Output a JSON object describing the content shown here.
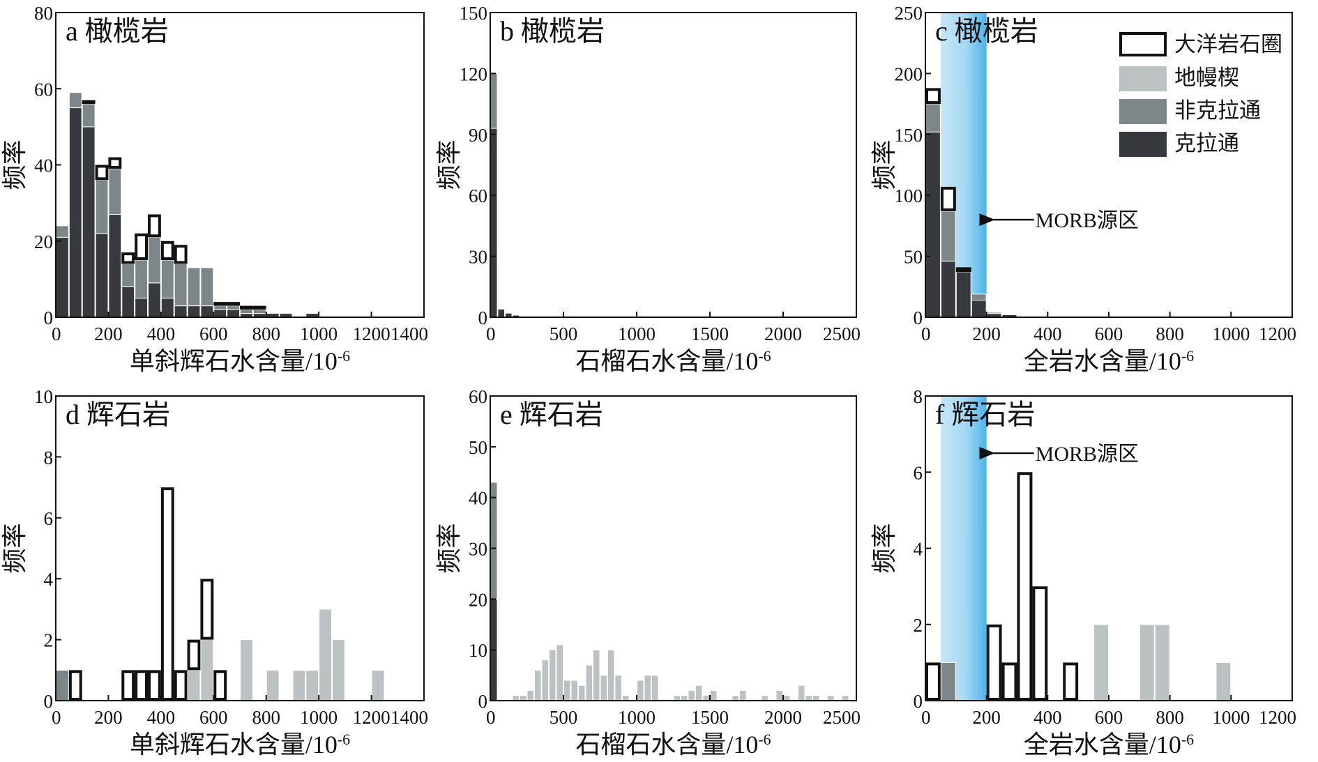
{
  "colors": {
    "ocean": "#ffffff",
    "wedge": "#bcc2c3",
    "noncraton": "#7d878a",
    "craton": "#363a3f",
    "morb_band_light": "#bfe3f6",
    "morb_band_dark": "#4fb6ec"
  },
  "legend": {
    "items": [
      {
        "key": "ocean",
        "label": "大洋岩石圈"
      },
      {
        "key": "wedge",
        "label": "地幔楔"
      },
      {
        "key": "noncraton",
        "label": "非克拉通"
      },
      {
        "key": "craton",
        "label": "克拉通"
      }
    ]
  },
  "chart_data": [
    {
      "id": "a",
      "type": "bar",
      "stacked": true,
      "title": "a 橄榄岩",
      "xlabel": "单斜辉石水含量/10",
      "xlabel_sup": "-6",
      "ylabel": "频率",
      "xlim": [
        0,
        1400
      ],
      "ylim": [
        0,
        80
      ],
      "xticks": [
        "0",
        "200",
        "400",
        "600",
        "800",
        "1000",
        "1200",
        "1400"
      ],
      "yticks": [
        "0",
        "20",
        "40",
        "60",
        "80"
      ],
      "bin_width": 50,
      "bin_start": [
        0,
        50,
        100,
        150,
        200,
        250,
        300,
        350,
        400,
        450,
        500,
        550,
        600,
        650,
        700,
        750,
        800,
        850,
        900,
        950
      ],
      "series": [
        {
          "key": "craton",
          "name": "克拉通",
          "values": [
            21,
            55,
            50,
            22,
            27,
            8,
            5,
            9,
            5,
            3,
            3,
            3,
            2,
            2,
            1,
            1,
            1,
            1,
            0,
            1
          ]
        },
        {
          "key": "noncraton",
          "name": "非克拉通",
          "values": [
            3,
            4,
            6,
            14,
            12,
            6,
            10,
            12,
            10,
            11,
            10,
            10,
            1,
            1,
            1,
            1,
            0,
            0,
            0,
            0
          ]
        },
        {
          "key": "wedge",
          "name": "地幔楔",
          "values": [
            0,
            0,
            0,
            0,
            0,
            0,
            0,
            0,
            0,
            0,
            0,
            0,
            0,
            0,
            0,
            0,
            0,
            0,
            0,
            0
          ]
        },
        {
          "key": "ocean",
          "name": "大洋岩石圈",
          "values": [
            0,
            0,
            1,
            4,
            3,
            3,
            7,
            6,
            5,
            5,
            0,
            0,
            1,
            1,
            1,
            1,
            0,
            0,
            0,
            0
          ]
        }
      ]
    },
    {
      "id": "b",
      "type": "bar",
      "stacked": true,
      "title": "b 橄榄岩",
      "xlabel": "石榴石水含量/10",
      "xlabel_sup": "-6",
      "ylabel": "频率",
      "xlim": [
        0,
        2500
      ],
      "ylim": [
        0,
        150
      ],
      "xticks": [
        "0",
        "500",
        "1000",
        "1500",
        "2000",
        "2500"
      ],
      "yticks": [
        "0",
        "30",
        "60",
        "90",
        "120",
        "150"
      ],
      "bin_width": 50,
      "bin_start": [
        0,
        50,
        100,
        150
      ],
      "series": [
        {
          "key": "craton",
          "name": "克拉通",
          "values": [
            93,
            4,
            2,
            1
          ]
        },
        {
          "key": "noncraton",
          "name": "非克拉通",
          "values": [
            27,
            0,
            0,
            0
          ]
        },
        {
          "key": "wedge",
          "name": "地幔楔",
          "values": [
            0,
            0,
            0,
            0
          ]
        },
        {
          "key": "ocean",
          "name": "大洋岩石圈",
          "values": [
            0,
            0,
            0,
            0
          ]
        }
      ]
    },
    {
      "id": "c",
      "type": "bar",
      "stacked": true,
      "title": "c 橄榄岩",
      "xlabel": "全岩水含量/10",
      "xlabel_sup": "-6",
      "ylabel": "频率",
      "xlim": [
        0,
        1200
      ],
      "ylim": [
        0,
        250
      ],
      "xticks": [
        "0",
        "200",
        "400",
        "600",
        "800",
        "1000",
        "1200"
      ],
      "yticks": [
        "0",
        "50",
        "100",
        "150",
        "200",
        "250"
      ],
      "band": [
        50,
        200
      ],
      "band_label": "MORB源区",
      "band_label_y": 80,
      "bin_width": 50,
      "bin_start": [
        0,
        50,
        100,
        150,
        200,
        250
      ],
      "series": [
        {
          "key": "craton",
          "name": "克拉通",
          "values": [
            152,
            46,
            37,
            14,
            3,
            2
          ]
        },
        {
          "key": "noncraton",
          "name": "非克拉通",
          "values": [
            23,
            41,
            0,
            5,
            1,
            0
          ]
        },
        {
          "key": "wedge",
          "name": "地幔楔",
          "values": [
            0,
            0,
            0,
            0,
            0,
            0
          ]
        },
        {
          "key": "ocean",
          "name": "大洋岩石圈",
          "values": [
            13,
            20,
            4,
            0,
            0,
            0
          ]
        }
      ]
    },
    {
      "id": "d",
      "type": "bar",
      "stacked": true,
      "title": "d 辉石岩",
      "xlabel": "单斜辉石水含量/10",
      "xlabel_sup": "-6",
      "ylabel": "频率",
      "xlim": [
        0,
        1400
      ],
      "ylim": [
        0,
        10
      ],
      "xticks": [
        "0",
        "200",
        "400",
        "600",
        "800",
        "1000",
        "1200",
        "1400"
      ],
      "yticks": [
        "0",
        "2",
        "4",
        "6",
        "8",
        "10"
      ],
      "bin_width": 50,
      "bin_start": [
        0,
        50,
        250,
        300,
        350,
        400,
        450,
        500,
        550,
        600,
        700,
        800,
        900,
        950,
        1000,
        1050,
        1200
      ],
      "series": [
        {
          "key": "craton",
          "name": "克拉通",
          "values": [
            0,
            0,
            0,
            0,
            0,
            0,
            0,
            0,
            0,
            0,
            0,
            0,
            0,
            0,
            0,
            0,
            0
          ]
        },
        {
          "key": "noncraton",
          "name": "非克拉通",
          "values": [
            1,
            0,
            0,
            0,
            0,
            0,
            0,
            0,
            0,
            0,
            0,
            0,
            0,
            0,
            0,
            0,
            0
          ]
        },
        {
          "key": "wedge",
          "name": "地幔楔",
          "values": [
            0,
            0,
            0,
            0,
            0,
            0,
            0,
            1,
            2,
            0,
            2,
            1,
            1,
            1,
            3,
            2,
            1
          ]
        },
        {
          "key": "ocean",
          "name": "大洋岩石圈",
          "values": [
            0,
            1,
            1,
            1,
            1,
            7,
            1,
            1,
            2,
            1,
            0,
            0,
            0,
            0,
            0,
            0,
            0
          ]
        }
      ]
    },
    {
      "id": "e",
      "type": "bar",
      "stacked": true,
      "title": "e 辉石岩",
      "xlabel": "石榴石水含量/10",
      "xlabel_sup": "-6",
      "ylabel": "频率",
      "xlim": [
        0,
        2500
      ],
      "ylim": [
        0,
        60
      ],
      "xticks": [
        "0",
        "500",
        "1000",
        "1500",
        "2000",
        "2500"
      ],
      "yticks": [
        "0",
        "10",
        "20",
        "30",
        "40",
        "50",
        "60"
      ],
      "bin_width": 50,
      "bin_start": [
        0,
        150,
        200,
        250,
        300,
        350,
        400,
        450,
        500,
        550,
        600,
        650,
        700,
        750,
        800,
        850,
        900,
        950,
        1000,
        1050,
        1100,
        1150,
        1200,
        1250,
        1300,
        1350,
        1400,
        1450,
        1500,
        1550,
        1600,
        1650,
        1700,
        1750,
        1800,
        1850,
        1900,
        1950,
        2000,
        2050,
        2100,
        2150,
        2200,
        2250,
        2300,
        2350,
        2400
      ],
      "series": [
        {
          "key": "craton",
          "name": "克拉通",
          "values": [
            20,
            0,
            0,
            0,
            0,
            0,
            0,
            0,
            0,
            0,
            0,
            0,
            0,
            0,
            0,
            0,
            0,
            0,
            0,
            0,
            0,
            0,
            0,
            0,
            0,
            0,
            0,
            0,
            0,
            0,
            0,
            0,
            0,
            0,
            0,
            0,
            0,
            0,
            0,
            0,
            0,
            0,
            0,
            0,
            0,
            0,
            0
          ]
        },
        {
          "key": "noncraton",
          "name": "非克拉通",
          "values": [
            23,
            0,
            0,
            0,
            0,
            0,
            0,
            0,
            0,
            0,
            0,
            0,
            0,
            0,
            0,
            0,
            0,
            0,
            0,
            0,
            0,
            0,
            0,
            0,
            0,
            0,
            0,
            0,
            0,
            0,
            0,
            0,
            0,
            0,
            0,
            0,
            0,
            0,
            0,
            0,
            0,
            0,
            0,
            0,
            0,
            0,
            0
          ]
        },
        {
          "key": "wedge",
          "name": "地幔楔",
          "values": [
            0,
            1,
            1,
            2,
            6,
            8,
            10,
            11,
            4,
            4,
            3,
            7,
            10,
            5,
            10,
            5,
            1,
            0,
            4,
            5,
            5,
            0,
            0,
            1,
            1,
            2,
            3,
            1,
            2,
            0,
            0,
            1,
            2,
            0,
            0,
            1,
            0,
            2,
            1,
            0,
            3,
            1,
            1,
            0,
            1,
            0,
            1
          ]
        },
        {
          "key": "ocean",
          "name": "大洋岩石圈",
          "values": [
            0,
            0,
            0,
            0,
            0,
            0,
            0,
            0,
            0,
            0,
            0,
            0,
            0,
            0,
            0,
            0,
            0,
            0,
            0,
            0,
            0,
            0,
            0,
            0,
            0,
            0,
            0,
            0,
            0,
            0,
            0,
            0,
            0,
            0,
            0,
            0,
            0,
            0,
            0,
            0,
            0,
            0,
            0,
            0,
            0,
            0,
            0
          ]
        }
      ]
    },
    {
      "id": "f",
      "type": "bar",
      "stacked": true,
      "title": "f 辉石岩",
      "xlabel": "全岩水含量/10",
      "xlabel_sup": "-6",
      "ylabel": "频率",
      "xlim": [
        0,
        1200
      ],
      "ylim": [
        0,
        8
      ],
      "xticks": [
        "0",
        "200",
        "400",
        "600",
        "800",
        "1000",
        "1200"
      ],
      "yticks": [
        "0",
        "2",
        "4",
        "6",
        "8"
      ],
      "band": [
        50,
        200
      ],
      "band_label": "MORB源区",
      "band_label_y": 6.5,
      "bin_width": 50,
      "bin_start": [
        0,
        50,
        200,
        250,
        300,
        350,
        450,
        550,
        700,
        750,
        950
      ],
      "series": [
        {
          "key": "craton",
          "name": "克拉通",
          "values": [
            0,
            0,
            0,
            0,
            0,
            0,
            0,
            0,
            0,
            0,
            0
          ]
        },
        {
          "key": "noncraton",
          "name": "非克拉通",
          "values": [
            0,
            1,
            0,
            0,
            0,
            0,
            0,
            0,
            0,
            0,
            0
          ]
        },
        {
          "key": "wedge",
          "name": "地幔楔",
          "values": [
            0,
            0,
            0,
            0,
            0,
            0,
            0,
            2,
            2,
            2,
            1
          ]
        },
        {
          "key": "ocean",
          "name": "大洋岩石圈",
          "values": [
            1,
            0,
            2,
            1,
            6,
            3,
            1,
            0,
            0,
            0,
            0
          ]
        }
      ]
    }
  ]
}
